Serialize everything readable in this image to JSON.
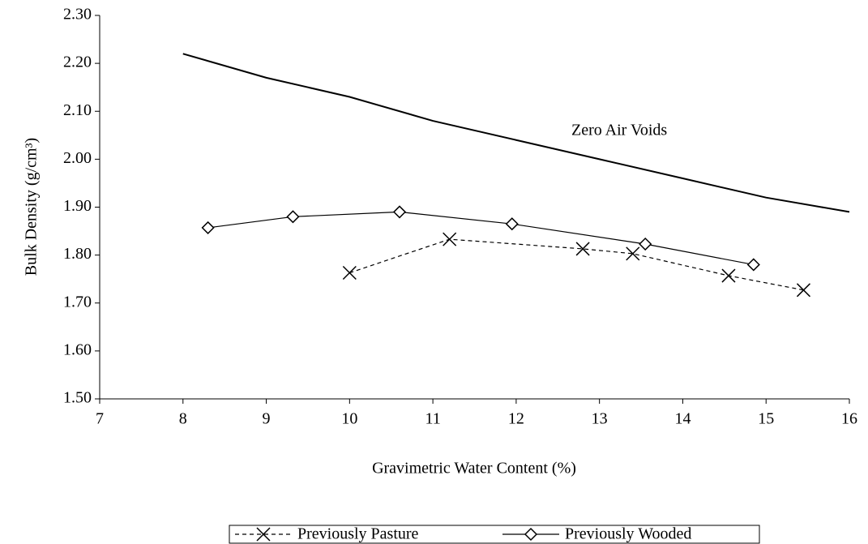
{
  "chart_data": {
    "type": "line",
    "x_label": "Gravimetric Water Content (%)",
    "y_label": "Bulk Density (g/cm³)",
    "xlim": [
      7,
      16
    ],
    "xticks": [
      7,
      8,
      9,
      10,
      11,
      12,
      13,
      14,
      15,
      16
    ],
    "ylim": [
      1.5,
      2.3
    ],
    "yticks": [
      {
        "value": 1.5,
        "label": "1.50"
      },
      {
        "value": 1.6,
        "label": "1.60"
      },
      {
        "value": 1.7,
        "label": "1.70"
      },
      {
        "value": 1.8,
        "label": "1.80"
      },
      {
        "value": 1.9,
        "label": "1.90"
      },
      {
        "value": 2.0,
        "label": "2.00"
      },
      {
        "value": 2.1,
        "label": "2.10"
      },
      {
        "value": 2.2,
        "label": "2.20"
      },
      {
        "value": 2.3,
        "label": "2.30"
      }
    ],
    "reference_line": {
      "name": "Zero Air Voids",
      "color": "#000000",
      "x": [
        8,
        9,
        10,
        11,
        12,
        13,
        14,
        15,
        16
      ],
      "values": [
        2.22,
        2.17,
        2.13,
        2.08,
        2.04,
        2.0,
        1.96,
        1.92,
        1.89
      ]
    },
    "series": [
      {
        "name": "Previously Pasture",
        "color": "#000000",
        "dash": true,
        "marker": "x",
        "x": [
          10.0,
          11.2,
          12.8,
          13.4,
          14.55,
          15.45
        ],
        "values": [
          1.763,
          1.833,
          1.813,
          1.803,
          1.757,
          1.727
        ]
      },
      {
        "name": "Previously Wooded",
        "color": "#000000",
        "dash": false,
        "marker": "diamond",
        "x": [
          8.3,
          9.32,
          10.6,
          11.95,
          13.55,
          14.85
        ],
        "values": [
          1.857,
          1.88,
          1.89,
          1.865,
          1.823,
          1.78
        ]
      }
    ],
    "legend": "bottom"
  }
}
